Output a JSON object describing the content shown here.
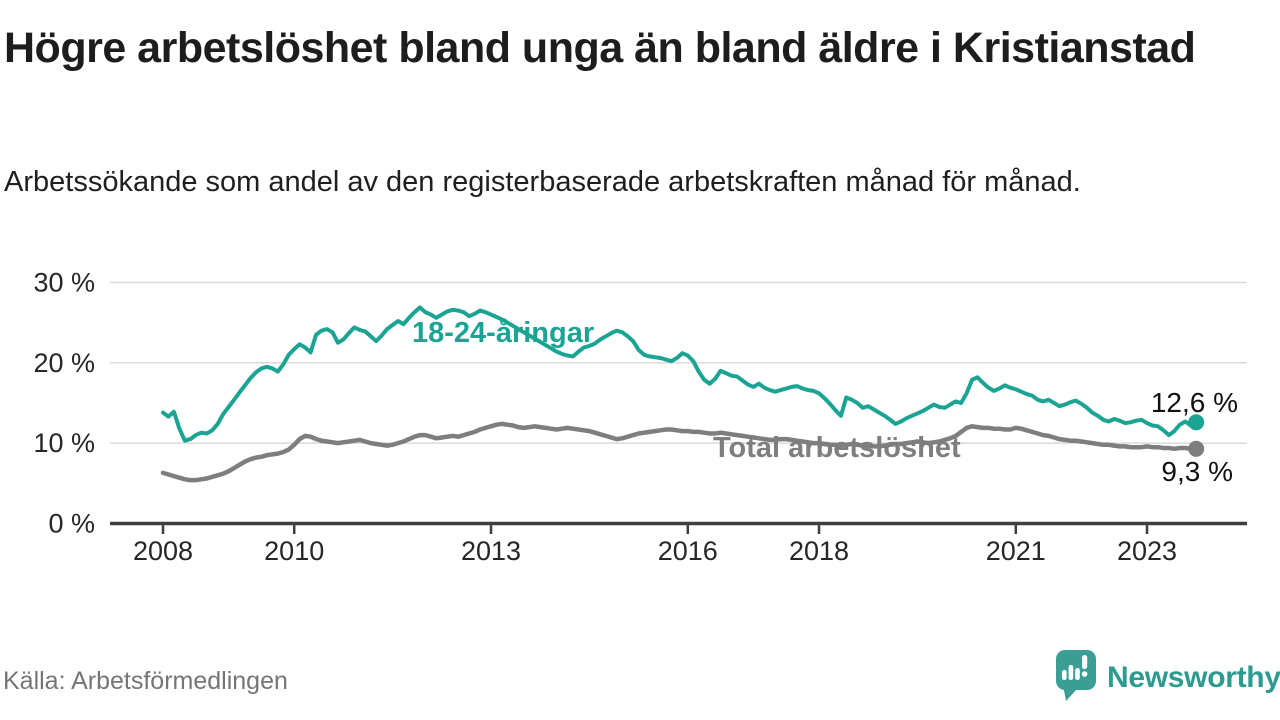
{
  "header": {
    "title": "Högre arbetslöshet bland unga än bland äldre i Kristianstad",
    "subtitle": "Arbetssökande som andel av den registerbaserade arbetskraften månad för månad."
  },
  "source": {
    "label": "Källa: Arbetsförmedlingen"
  },
  "branding": {
    "wordmark": "Newsworthy",
    "logo_icon": "newsworthy-speech-bubble-bar-chart-icon",
    "brand_color": "#2e9b90",
    "icon_color": "#3a9e95"
  },
  "chart_data": {
    "type": "line",
    "title": "Högre arbetslöshet bland unga än bland äldre i Kristianstad",
    "xlabel": "",
    "ylabel": "",
    "x_start_year": 2008,
    "x_step_months": 1,
    "x_end": "2023-10",
    "xticks": [
      2008,
      2010,
      2013,
      2016,
      2018,
      2021,
      2023
    ],
    "xtick_labels": [
      "2008",
      "2010",
      "2013",
      "2016",
      "2018",
      "2021",
      "2023"
    ],
    "yticks": [
      30,
      20,
      10,
      0
    ],
    "ytick_labels": [
      "30 %",
      "20 %",
      "10 %",
      "0 %"
    ],
    "ylim": [
      0,
      30
    ],
    "grid": true,
    "legend_position": "inline-labels",
    "grid_color": "#d9d9d9",
    "series": [
      {
        "name": "18-24-åringar",
        "color": "#1ba493",
        "end_label": "12,6 %",
        "end_value": 12.6,
        "values": [
          13.8,
          13.3,
          13.9,
          11.8,
          10.3,
          10.5,
          11.0,
          11.3,
          11.2,
          11.6,
          12.4,
          13.6,
          14.5,
          15.4,
          16.3,
          17.2,
          18.1,
          18.8,
          19.3,
          19.5,
          19.3,
          18.9,
          19.8,
          21.0,
          21.7,
          22.3,
          21.9,
          21.3,
          23.5,
          24.0,
          24.2,
          23.8,
          22.5,
          22.9,
          23.7,
          24.4,
          24.1,
          23.9,
          23.3,
          22.7,
          23.4,
          24.2,
          24.7,
          25.2,
          24.8,
          25.6,
          26.3,
          26.9,
          26.3,
          26.0,
          25.6,
          26.0,
          26.4,
          26.6,
          26.5,
          26.3,
          25.8,
          26.1,
          26.5,
          26.3,
          26.0,
          25.7,
          25.4,
          25.0,
          24.6,
          24.2,
          23.8,
          23.4,
          23.0,
          22.6,
          22.2,
          21.8,
          21.4,
          21.1,
          20.9,
          20.8,
          21.4,
          21.9,
          22.1,
          22.4,
          22.9,
          23.3,
          23.7,
          24.0,
          23.8,
          23.3,
          22.7,
          21.6,
          21.0,
          20.8,
          20.7,
          20.6,
          20.4,
          20.2,
          20.6,
          21.2,
          20.9,
          20.2,
          18.9,
          17.9,
          17.4,
          18.0,
          19.0,
          18.7,
          18.4,
          18.3,
          17.8,
          17.3,
          17.0,
          17.4,
          16.9,
          16.6,
          16.4,
          16.6,
          16.8,
          17.0,
          17.1,
          16.8,
          16.6,
          16.5,
          16.2,
          15.6,
          14.9,
          14.1,
          13.4,
          15.7,
          15.4,
          15.0,
          14.4,
          14.6,
          14.2,
          13.8,
          13.4,
          12.9,
          12.4,
          12.7,
          13.1,
          13.4,
          13.7,
          14.0,
          14.4,
          14.8,
          14.5,
          14.4,
          14.8,
          15.2,
          15.0,
          16.2,
          17.9,
          18.2,
          17.5,
          16.9,
          16.5,
          16.8,
          17.2,
          16.9,
          16.7,
          16.4,
          16.1,
          15.9,
          15.4,
          15.2,
          15.4,
          15.0,
          14.6,
          14.8,
          15.1,
          15.3,
          14.9,
          14.4,
          13.8,
          13.4,
          12.9,
          12.7,
          13.0,
          12.8,
          12.5,
          12.6,
          12.8,
          12.9,
          12.5,
          12.2,
          12.1,
          11.6,
          11.0,
          11.5,
          12.3,
          12.7,
          12.2,
          12.6
        ]
      },
      {
        "name": "Total arbetslöshet",
        "color": "#7e7e7e",
        "end_label": "9,3 %",
        "end_value": 9.3,
        "values": [
          6.3,
          6.1,
          5.9,
          5.7,
          5.5,
          5.4,
          5.4,
          5.5,
          5.6,
          5.8,
          6.0,
          6.2,
          6.5,
          6.9,
          7.3,
          7.7,
          8.0,
          8.2,
          8.3,
          8.5,
          8.6,
          8.7,
          8.9,
          9.2,
          9.8,
          10.5,
          10.9,
          10.8,
          10.5,
          10.3,
          10.2,
          10.1,
          10.0,
          10.1,
          10.2,
          10.3,
          10.4,
          10.2,
          10.0,
          9.9,
          9.8,
          9.7,
          9.8,
          10.0,
          10.2,
          10.5,
          10.8,
          11.0,
          11.0,
          10.8,
          10.6,
          10.7,
          10.8,
          10.9,
          10.8,
          11.0,
          11.2,
          11.4,
          11.7,
          11.9,
          12.1,
          12.3,
          12.4,
          12.3,
          12.2,
          12.0,
          11.9,
          12.0,
          12.1,
          12.0,
          11.9,
          11.8,
          11.7,
          11.8,
          11.9,
          11.8,
          11.7,
          11.6,
          11.5,
          11.3,
          11.1,
          10.9,
          10.7,
          10.5,
          10.6,
          10.8,
          11.0,
          11.2,
          11.3,
          11.4,
          11.5,
          11.6,
          11.7,
          11.7,
          11.6,
          11.5,
          11.5,
          11.4,
          11.4,
          11.3,
          11.2,
          11.2,
          11.3,
          11.2,
          11.1,
          11.0,
          10.9,
          10.8,
          10.7,
          10.6,
          10.5,
          10.4,
          10.4,
          10.5,
          10.5,
          10.4,
          10.3,
          10.2,
          10.1,
          10.0,
          10.0,
          9.9,
          9.8,
          9.8,
          9.7,
          9.8,
          9.9,
          9.8,
          9.7,
          9.7,
          9.6,
          9.6,
          9.7,
          9.8,
          9.9,
          9.9,
          10.0,
          10.1,
          10.2,
          10.1,
          10.0,
          10.1,
          10.2,
          10.4,
          10.6,
          10.9,
          11.4,
          11.9,
          12.1,
          12.0,
          11.9,
          11.9,
          11.8,
          11.8,
          11.7,
          11.7,
          11.9,
          11.8,
          11.6,
          11.4,
          11.2,
          11.0,
          10.9,
          10.7,
          10.5,
          10.4,
          10.3,
          10.3,
          10.2,
          10.1,
          10.0,
          9.9,
          9.8,
          9.8,
          9.7,
          9.6,
          9.6,
          9.5,
          9.5,
          9.5,
          9.6,
          9.5,
          9.5,
          9.4,
          9.4,
          9.3,
          9.4,
          9.4,
          9.3,
          9.3
        ]
      }
    ]
  }
}
